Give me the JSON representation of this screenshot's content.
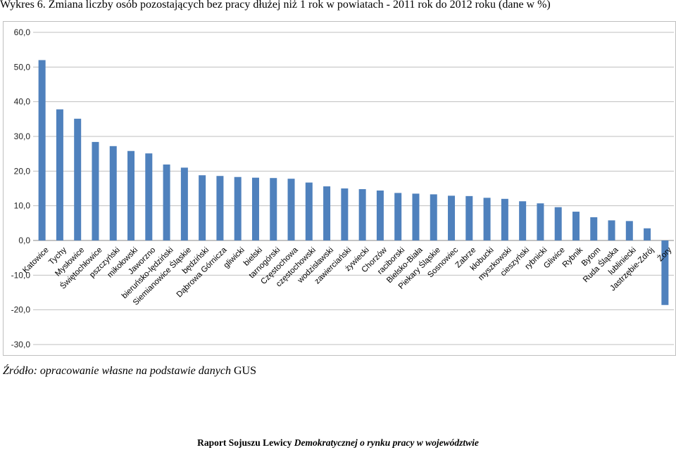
{
  "header": {
    "title": "Wykres 6. Zmiana liczby osób pozostających bez pracy dłużej niż 1 rok w powiatach - 2011 rok do 2012 roku (dane w %)"
  },
  "source": {
    "italic": "Źródło: opracowanie własne na podstawie danych",
    "plain": " GUS"
  },
  "footer": {
    "bold": "Raport Sojuszu Lewicy ",
    "bold_italic": "Demokratycznej o rynku pracy w województwie"
  },
  "colors": {
    "bar": "#4f81bd",
    "gridline": "#bfbfbf",
    "axis": "#888888"
  },
  "chart_data": {
    "type": "bar",
    "title": "",
    "xlabel": "",
    "ylabel": "",
    "ylim": [
      -30,
      60
    ],
    "yticks": [
      60,
      50,
      40,
      30,
      20,
      10,
      0,
      -10,
      -20,
      -30
    ],
    "ytick_labels": [
      "60,0",
      "50,0",
      "40,0",
      "30,0",
      "20,0",
      "10,0",
      "0,0",
      "-10,0",
      "-20,0",
      "-30,0"
    ],
    "grid": true,
    "legend": "none",
    "categories": [
      "Katowice",
      "Tychy",
      "Mysłowice",
      "Świętochłowice",
      "pszczyński",
      "mikołowski",
      "Jaworzno",
      "bieruńsko-lędziński",
      "Siemianowice Śląskie",
      "będziński",
      "Dąbrowa Górnicza",
      "gliwicki",
      "bielski",
      "tarnogórski",
      "Częstochowa",
      "częstochowski",
      "wodzisławski",
      "zawierciański",
      "żywiecki",
      "Chorzów",
      "raciborski",
      "Bielsko-Biała",
      "Piekary Śląskie",
      "Sosnowiec",
      "Zabrze",
      "kłobucki",
      "myszkowski",
      "cieszyński",
      "rybnicki",
      "Gliwice",
      "Rybnik",
      "Bytom",
      "Ruda Śląska",
      "lubliniecki",
      "Jastrzębie-Zdrój",
      "Żory"
    ],
    "values": [
      52.0,
      37.8,
      35.1,
      28.4,
      27.2,
      25.8,
      25.1,
      21.9,
      21.0,
      18.8,
      18.6,
      18.3,
      18.1,
      18.0,
      17.8,
      16.7,
      15.6,
      15.0,
      14.8,
      14.4,
      13.7,
      13.5,
      13.3,
      12.9,
      12.8,
      12.3,
      12.0,
      11.3,
      10.7,
      9.6,
      8.3,
      6.7,
      5.8,
      5.6,
      3.5,
      -18.6
    ]
  }
}
